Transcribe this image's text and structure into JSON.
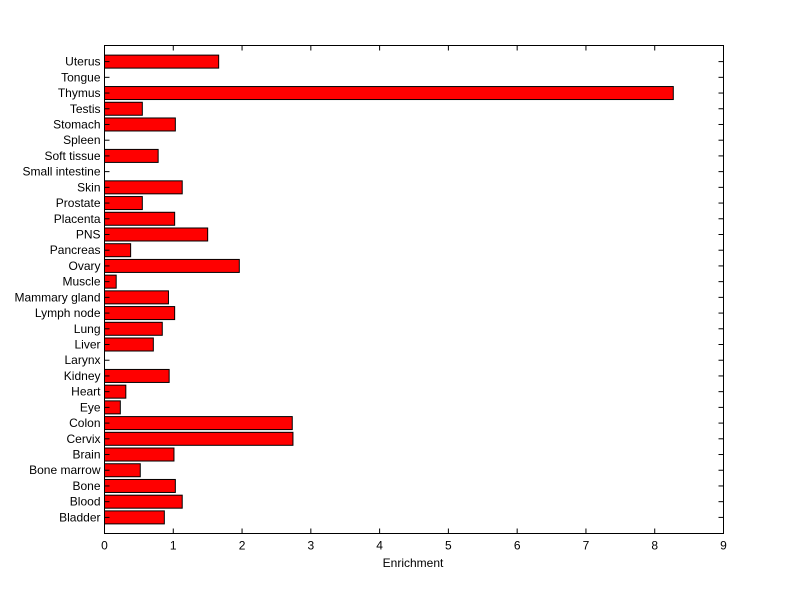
{
  "chart_data": {
    "type": "bar",
    "orientation": "horizontal",
    "title": "",
    "xlabel": "Enrichment",
    "ylabel": "",
    "xlim": [
      0,
      9
    ],
    "xticks": [
      0,
      1,
      2,
      3,
      4,
      5,
      6,
      7,
      8,
      9
    ],
    "grid": false,
    "bar_color": "#ff0000",
    "edge_color": "#000000",
    "categories": [
      "Uterus",
      "Tongue",
      "Thymus",
      "Testis",
      "Stomach",
      "Spleen",
      "Soft tissue",
      "Small intestine",
      "Skin",
      "Prostate",
      "Placenta",
      "PNS",
      "Pancreas",
      "Ovary",
      "Muscle",
      "Mammary gland",
      "Lymph node",
      "Lung",
      "Liver",
      "Larynx",
      "Kidney",
      "Heart",
      "Eye",
      "Colon",
      "Cervix",
      "Brain",
      "Bone marrow",
      "Bone",
      "Blood",
      "Bladder"
    ],
    "values": [
      1.66,
      0,
      8.27,
      0.55,
      1.03,
      0,
      0.78,
      0,
      1.13,
      0.55,
      1.02,
      1.5,
      0.38,
      1.96,
      0.17,
      0.93,
      1.02,
      0.84,
      0.71,
      0,
      0.94,
      0.31,
      0.23,
      2.73,
      2.74,
      1.01,
      0.52,
      1.03,
      1.13,
      0.87
    ]
  }
}
